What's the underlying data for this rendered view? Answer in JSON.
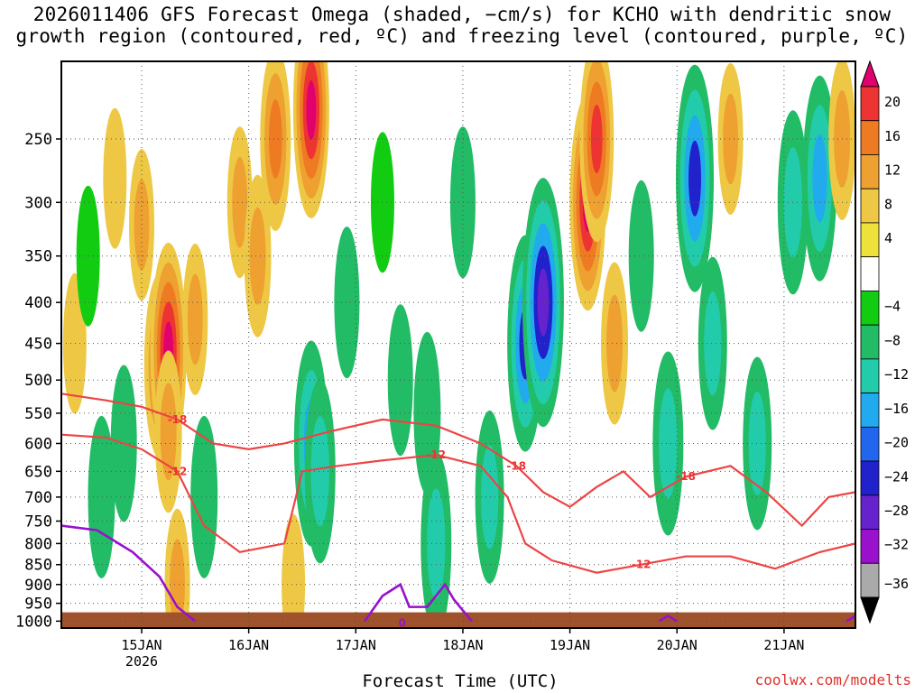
{
  "title": {
    "line1": "2026011406 GFS Forecast Omega (shaded, −cm/s) for KCHO with dendritic snow",
    "line2": "growth region (contoured, red, ºC) and freezing level (contoured, purple, ºC)"
  },
  "xlabel": "Forecast Time (UTC)",
  "credit": "coolwx.com/modelts",
  "chart_data": {
    "type": "heatmap",
    "title": "2026011406 GFS Forecast Omega (shaded, −cm/s) for KCHO with dendritic snow growth region (contoured, red, ºC) and freezing level (contoured, purple, ºC)",
    "xlabel": "Forecast Time (UTC)",
    "ylabel": "",
    "y_axis": {
      "scale": "log",
      "inverted": true,
      "range": [
        200,
        1020
      ],
      "ticks": [
        250,
        300,
        350,
        400,
        450,
        500,
        550,
        600,
        650,
        700,
        750,
        800,
        850,
        900,
        950,
        1000
      ]
    },
    "x_axis": {
      "range_hours": [
        0,
        178
      ],
      "ticks": [
        {
          "hour": 18,
          "label": "15JAN",
          "sub": "2026"
        },
        {
          "hour": 42,
          "label": "16JAN",
          "sub": ""
        },
        {
          "hour": 66,
          "label": "17JAN",
          "sub": ""
        },
        {
          "hour": 90,
          "label": "18JAN",
          "sub": ""
        },
        {
          "hour": 114,
          "label": "19JAN",
          "sub": ""
        },
        {
          "hour": 138,
          "label": "20JAN",
          "sub": ""
        },
        {
          "hour": 162,
          "label": "21JAN",
          "sub": ""
        }
      ]
    },
    "grid": true,
    "colorbar": {
      "position": "right",
      "labels": [
        "20",
        "16",
        "12",
        "8",
        "4",
        "−4",
        "−8",
        "−12",
        "−16",
        "−20",
        "−24",
        "−28",
        "−32",
        "−36"
      ],
      "colors": [
        "#e0006e",
        "#ee3333",
        "#ee7a22",
        "#eea030",
        "#eec845",
        "#eee23a",
        "#ffffff",
        "#11cc11",
        "#22bb66",
        "#22ccaa",
        "#22aaee",
        "#2266ee",
        "#2222cc",
        "#6622cc",
        "#9911cc",
        "#aaaaaa",
        "#000000"
      ]
    },
    "omega_cells": [
      {
        "t": 3,
        "p": 450,
        "v": 6
      },
      {
        "t": 6,
        "p": 350,
        "v": -6
      },
      {
        "t": 9,
        "p": 700,
        "v": -10
      },
      {
        "t": 12,
        "p": 280,
        "v": 6
      },
      {
        "t": 14,
        "p": 600,
        "v": -9
      },
      {
        "t": 18,
        "p": 320,
        "v": 8
      },
      {
        "t": 22,
        "p": 480,
        "v": 14
      },
      {
        "t": 24,
        "p": 460,
        "v": 20
      },
      {
        "t": 24,
        "p": 580,
        "v": 10
      },
      {
        "t": 26,
        "p": 900,
        "v": 8
      },
      {
        "t": 30,
        "p": 420,
        "v": 8
      },
      {
        "t": 32,
        "p": 700,
        "v": -10
      },
      {
        "t": 40,
        "p": 300,
        "v": 8
      },
      {
        "t": 44,
        "p": 350,
        "v": 10
      },
      {
        "t": 48,
        "p": 250,
        "v": 14
      },
      {
        "t": 52,
        "p": 900,
        "v": 6
      },
      {
        "t": 56,
        "p": 230,
        "v": 20
      },
      {
        "t": 56,
        "p": 600,
        "v": -18
      },
      {
        "t": 58,
        "p": 650,
        "v": -14
      },
      {
        "t": 64,
        "p": 400,
        "v": -8
      },
      {
        "t": 72,
        "p": 300,
        "v": -6
      },
      {
        "t": 76,
        "p": 500,
        "v": -8
      },
      {
        "t": 82,
        "p": 550,
        "v": -10
      },
      {
        "t": 84,
        "p": 800,
        "v": -14
      },
      {
        "t": 90,
        "p": 300,
        "v": -8
      },
      {
        "t": 96,
        "p": 700,
        "v": -12
      },
      {
        "t": 104,
        "p": 450,
        "v": -20
      },
      {
        "t": 108,
        "p": 400,
        "v": -26
      },
      {
        "t": 118,
        "p": 300,
        "v": 20
      },
      {
        "t": 120,
        "p": 250,
        "v": 18
      },
      {
        "t": 124,
        "p": 450,
        "v": 10
      },
      {
        "t": 130,
        "p": 350,
        "v": -8
      },
      {
        "t": 136,
        "p": 600,
        "v": -14
      },
      {
        "t": 142,
        "p": 280,
        "v": -22
      },
      {
        "t": 146,
        "p": 450,
        "v": -12
      },
      {
        "t": 150,
        "p": 250,
        "v": 8
      },
      {
        "t": 156,
        "p": 600,
        "v": -12
      },
      {
        "t": 164,
        "p": 300,
        "v": -14
      },
      {
        "t": 170,
        "p": 280,
        "v": -18
      },
      {
        "t": 175,
        "p": 250,
        "v": 10
      }
    ],
    "dgz_contours": [
      {
        "level": -12,
        "label": "-12",
        "points": [
          [
            0,
            585
          ],
          [
            10,
            590
          ],
          [
            18,
            610
          ],
          [
            26,
            650
          ],
          [
            32,
            760
          ],
          [
            40,
            820
          ],
          [
            50,
            800
          ],
          [
            54,
            650
          ],
          [
            62,
            640
          ],
          [
            72,
            630
          ],
          [
            84,
            620
          ],
          [
            94,
            640
          ],
          [
            100,
            700
          ],
          [
            104,
            800
          ],
          [
            110,
            840
          ],
          [
            120,
            870
          ],
          [
            130,
            850
          ],
          [
            140,
            830
          ],
          [
            150,
            830
          ],
          [
            160,
            860
          ],
          [
            170,
            820
          ],
          [
            178,
            800
          ]
        ]
      },
      {
        "level": -18,
        "label": "-18",
        "points": [
          [
            0,
            520
          ],
          [
            10,
            530
          ],
          [
            18,
            540
          ],
          [
            26,
            560
          ],
          [
            34,
            600
          ],
          [
            42,
            610
          ],
          [
            50,
            600
          ],
          [
            60,
            580
          ],
          [
            72,
            560
          ],
          [
            84,
            570
          ],
          [
            94,
            600
          ],
          [
            102,
            640
          ],
          [
            108,
            690
          ],
          [
            114,
            720
          ],
          [
            120,
            680
          ],
          [
            126,
            650
          ],
          [
            132,
            700
          ],
          [
            140,
            660
          ],
          [
            150,
            640
          ],
          [
            158,
            690
          ],
          [
            166,
            760
          ],
          [
            172,
            700
          ],
          [
            178,
            690
          ]
        ]
      }
    ],
    "freezing_level_contours": [
      {
        "level": 0,
        "label": "0",
        "points": [
          [
            0,
            760
          ],
          [
            8,
            770
          ],
          [
            16,
            820
          ],
          [
            22,
            880
          ],
          [
            26,
            960
          ],
          [
            30,
            1000
          ]
        ]
      },
      {
        "level": 0,
        "label": "0",
        "points": [
          [
            68,
            1000
          ],
          [
            72,
            930
          ],
          [
            76,
            900
          ],
          [
            78,
            960
          ],
          [
            82,
            960
          ],
          [
            86,
            900
          ],
          [
            88,
            940
          ],
          [
            92,
            1000
          ]
        ]
      },
      {
        "level": 0,
        "label": "0",
        "points": [
          [
            134,
            1000
          ],
          [
            136,
            985
          ],
          [
            138,
            1000
          ]
        ]
      },
      {
        "level": 0,
        "label": "0",
        "points": [
          [
            176,
            1000
          ],
          [
            178,
            985
          ]
        ]
      }
    ],
    "terrain": {
      "surface_pressure": 975
    }
  }
}
